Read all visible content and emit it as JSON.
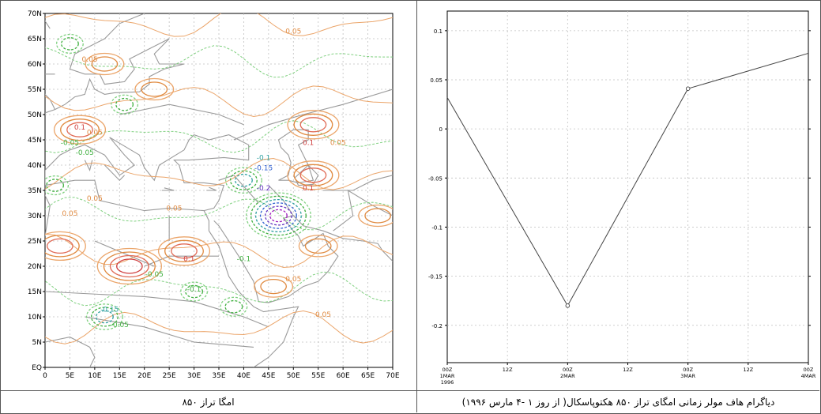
{
  "captions": {
    "map": "امگا تراز ۸۵۰",
    "chart": "دیاگرام هاف مولر زمانی امگای تراز ۸۵۰ هکتوپاسکال( از روز ۱ -۴ مارس ۱۹۹۶)"
  },
  "colors": {
    "grid": "#c0c0c0",
    "line": "#444444",
    "coast": "#9a9a9a"
  },
  "map": {
    "lat_labels": [
      "70N",
      "65N",
      "60N",
      "55N",
      "50N",
      "45N",
      "40N",
      "35N",
      "30N",
      "25N",
      "20N",
      "15N",
      "10N",
      "5N",
      "EQ"
    ],
    "lon_labels": [
      "0",
      "5E",
      "10E",
      "15E",
      "20E",
      "25E",
      "30E",
      "35E",
      "40E",
      "45E",
      "50E",
      "55E",
      "60E",
      "65E",
      "70E"
    ],
    "contour_labels": [
      {
        "text": "0.05",
        "color": "#e08a40"
      },
      {
        "text": "0.05",
        "color": "#e08a40"
      },
      {
        "text": "0.1",
        "color": "#d04040"
      },
      {
        "text": "0.05",
        "color": "#e08a40"
      },
      {
        "text": "-0.05",
        "color": "#40b040"
      },
      {
        "text": "0.1",
        "color": "#d04040"
      },
      {
        "text": "0.05",
        "color": "#e08a40"
      },
      {
        "text": "-0.05",
        "color": "#40b040"
      },
      {
        "text": "-0.1",
        "color": "#30a0a0"
      },
      {
        "text": "-0.15",
        "color": "#3060d0"
      },
      {
        "text": "-0.2",
        "color": "#6030c0"
      },
      {
        "text": "0.05",
        "color": "#e08a40"
      },
      {
        "text": "0.05",
        "color": "#e08a40"
      },
      {
        "text": "0.05",
        "color": "#e08a40"
      },
      {
        "text": "0.1",
        "color": "#d04040"
      },
      {
        "text": "0.1",
        "color": "#d04040"
      },
      {
        "text": "-0.1",
        "color": "#40b040"
      },
      {
        "text": "-0.05",
        "color": "#40b040"
      },
      {
        "text": "-0.1",
        "color": "#40b040"
      },
      {
        "text": "-0.15",
        "color": "#30a0a0"
      },
      {
        "text": "0.05",
        "color": "#e08a40"
      },
      {
        "text": "-0.05",
        "color": "#40b040"
      },
      {
        "text": "0.05",
        "color": "#e08a40"
      }
    ],
    "positive_cells": [
      {
        "lon": 7,
        "lat": 47,
        "level": 3
      },
      {
        "lon": 17,
        "lat": 20,
        "level": 4
      },
      {
        "lon": 3,
        "lat": 24,
        "level": 3
      },
      {
        "lon": 28,
        "lat": 23,
        "level": 3
      },
      {
        "lon": 54,
        "lat": 48,
        "level": 3
      },
      {
        "lon": 54,
        "lat": 38,
        "level": 3
      },
      {
        "lon": 55,
        "lat": 24,
        "level": 2
      },
      {
        "lon": 67,
        "lat": 30,
        "level": 2
      },
      {
        "lon": 46,
        "lat": 16,
        "level": 2
      },
      {
        "lon": 22,
        "lat": 55,
        "level": 2
      },
      {
        "lon": 12,
        "lat": 60,
        "level": 2
      }
    ],
    "negative_cells": [
      {
        "lon": 47,
        "lat": 30,
        "level": 6
      },
      {
        "lon": 40,
        "lat": 37,
        "level": 3
      },
      {
        "lon": 5,
        "lat": 64,
        "level": 2
      },
      {
        "lon": 12,
        "lat": 10,
        "level": 3
      },
      {
        "lon": 2,
        "lat": 36,
        "level": 2
      },
      {
        "lon": 30,
        "lat": 15,
        "level": 2
      },
      {
        "lon": 38,
        "lat": 12,
        "level": 2
      },
      {
        "lon": 16,
        "lat": 52,
        "level": 2
      }
    ]
  },
  "chart_data": {
    "type": "line",
    "x": [
      "00Z 1MAR 1996",
      "00Z 2MAR",
      "00Z 3MAR",
      "00Z 4MAR"
    ],
    "x_hours": [
      0,
      24,
      48,
      72
    ],
    "values": [
      0.032,
      -0.18,
      0.041,
      0.077
    ],
    "xlim": [
      0,
      72
    ],
    "ylim": [
      -0.238,
      0.12
    ],
    "yticks": [
      0.1,
      0.05,
      0,
      -0.05,
      -0.1,
      -0.15,
      -0.2
    ],
    "ytick_labels": [
      "0.1",
      "0.05",
      "0",
      "-0.05",
      "-0.1",
      "-0.15",
      "-0.2"
    ],
    "xticks": [
      {
        "h": 0,
        "lines": [
          "00Z",
          "1MAR",
          "1996"
        ]
      },
      {
        "h": 12,
        "lines": [
          "12Z"
        ]
      },
      {
        "h": 24,
        "lines": [
          "00Z",
          "2MAR"
        ]
      },
      {
        "h": 36,
        "lines": [
          "12Z"
        ]
      },
      {
        "h": 48,
        "lines": [
          "00Z",
          "3MAR"
        ]
      },
      {
        "h": 60,
        "lines": [
          "12Z"
        ]
      },
      {
        "h": 72,
        "lines": [
          "00Z",
          "4MAR"
        ]
      }
    ],
    "grid": true
  }
}
